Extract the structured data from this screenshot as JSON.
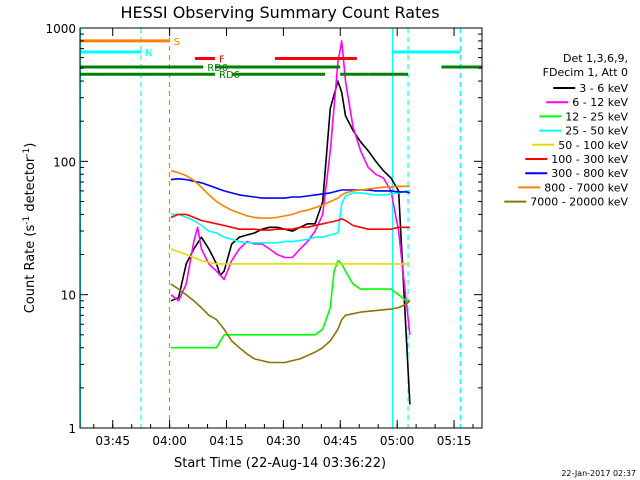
{
  "chart_data": {
    "type": "line",
    "title": "HESSI Observing Summary Count Rates",
    "xlabel": "Start Time (22-Aug-14 03:36:22)",
    "ylabel": "Count Rate (s^-1 detector^-1)",
    "y_scale": "log",
    "x_unit": "minutes since 03:36:22",
    "xlim": [
      0,
      106
    ],
    "ylim": [
      1,
      1000
    ],
    "x_ticks": [
      {
        "x": 8.63,
        "label": "03:45"
      },
      {
        "x": 23.63,
        "label": "04:00"
      },
      {
        "x": 38.63,
        "label": "04:15"
      },
      {
        "x": 53.63,
        "label": "04:30"
      },
      {
        "x": 68.63,
        "label": "04:45"
      },
      {
        "x": 83.63,
        "label": "05:00"
      },
      {
        "x": 98.63,
        "label": "05:15"
      }
    ],
    "y_ticks": [
      {
        "y": 1,
        "label": "1"
      },
      {
        "y": 10,
        "label": "10"
      },
      {
        "y": 100,
        "label": "100"
      },
      {
        "y": 1000,
        "label": "1000"
      }
    ],
    "legend": {
      "position": "right",
      "header": [
        "Det 1,3,6,9,",
        "FDecim 1, Att 0"
      ],
      "entries": [
        {
          "label": "3 - 6 keV",
          "color": "#000000"
        },
        {
          "label": "6 - 12 keV",
          "color": "#ff00ff"
        },
        {
          "label": "12 - 25 keV",
          "color": "#00ff00"
        },
        {
          "label": "25 - 50 keV",
          "color": "#00ffff"
        },
        {
          "label": "50 - 100 keV",
          "color": "#dddd00"
        },
        {
          "label": "100 - 300 keV",
          "color": "#ff0000"
        },
        {
          "label": "300 - 800 keV",
          "color": "#0000ff"
        },
        {
          "label": "800 - 7000 keV",
          "color": "#ff8000"
        },
        {
          "label": "7000 - 20000 keV",
          "color": "#8b7500"
        }
      ]
    },
    "flag_bars": [
      {
        "label": "S",
        "color": "#ff8000",
        "level": 800,
        "segments": [
          [
            0,
            23.6
          ]
        ]
      },
      {
        "label": "N",
        "color": "#00ffff",
        "level": 660,
        "segments": [
          [
            0,
            16.1
          ],
          [
            82.4,
            100.3
          ]
        ]
      },
      {
        "label": "F",
        "color": "#ff0000",
        "level": 590,
        "segments": [
          [
            30.3,
            35.6
          ],
          [
            51.4,
            73.0
          ]
        ]
      },
      {
        "label": "RD0",
        "color": "#008000",
        "level": 510,
        "segments": [
          [
            0,
            32.5
          ],
          [
            35.6,
            68.6
          ],
          [
            95.3,
            106
          ]
        ]
      },
      {
        "label": "RD6",
        "color": "#008000",
        "level": 450,
        "segments": [
          [
            0,
            35.6
          ],
          [
            40.0,
            64.6
          ],
          [
            68.6,
            76.1
          ],
          [
            76.1,
            86.5
          ]
        ]
      }
    ],
    "vertical_lines": [
      {
        "x": 0.1,
        "color": "#00ffff",
        "style": "solid"
      },
      {
        "x": 16.1,
        "color": "#00ffff",
        "style": "dashed"
      },
      {
        "x": 23.6,
        "color": "#ff8000",
        "style": "dashed"
      },
      {
        "x": 82.4,
        "color": "#00ffff",
        "style": "solid"
      },
      {
        "x": 86.5,
        "color": "#00ffff",
        "style": "dashed"
      },
      {
        "x": 100.3,
        "color": "#00ffff",
        "style": "dashed"
      }
    ],
    "series": [
      {
        "name": "3 - 6 keV",
        "color": "#000000",
        "x": [
          24,
          26,
          28,
          30,
          32,
          34,
          36,
          37,
          38,
          40,
          42,
          44,
          46,
          48,
          50,
          52,
          54,
          56,
          58,
          60,
          62,
          64,
          66,
          68,
          69,
          70,
          72,
          74,
          76,
          78,
          80,
          82,
          84,
          86,
          87
        ],
        "y": [
          9,
          9.5,
          17,
          22,
          27,
          22,
          17,
          14,
          15,
          24,
          27,
          28,
          29,
          31,
          32,
          32,
          31,
          30,
          32,
          34,
          34,
          50,
          250,
          400,
          330,
          220,
          170,
          140,
          120,
          100,
          85,
          75,
          60,
          5,
          1.5
        ]
      },
      {
        "name": "6 - 12 keV",
        "color": "#ff00ff",
        "x": [
          24,
          26,
          28,
          30,
          31,
          32,
          34,
          36,
          37,
          38,
          40,
          42,
          44,
          46,
          48,
          50,
          52,
          54,
          56,
          58,
          60,
          62,
          64,
          66,
          68,
          69,
          70,
          72,
          74,
          76,
          78,
          80,
          82,
          84,
          86,
          87
        ],
        "y": [
          10,
          9,
          12,
          25,
          32,
          22,
          17,
          15,
          14,
          13,
          18,
          22,
          25,
          24,
          24,
          22,
          20,
          19,
          19,
          22,
          25,
          30,
          40,
          120,
          550,
          800,
          400,
          180,
          120,
          90,
          80,
          75,
          60,
          30,
          9,
          5
        ]
      },
      {
        "name": "12 - 25 keV",
        "color": "#00ff00",
        "x": [
          24,
          27,
          30,
          33,
          36,
          38,
          40,
          43,
          46,
          50,
          54,
          58,
          62,
          64,
          66,
          67,
          68,
          69,
          70,
          72,
          74,
          76,
          78,
          80,
          82,
          84,
          86,
          87
        ],
        "y": [
          4,
          4,
          4,
          4,
          4,
          5,
          5,
          5,
          5,
          5,
          5,
          5,
          5,
          5.5,
          8,
          15,
          18,
          17,
          15,
          12,
          11,
          11,
          11,
          11,
          11,
          10,
          9,
          9
        ]
      },
      {
        "name": "25 - 50 keV",
        "color": "#00ffff",
        "x": [
          24,
          26,
          28,
          30,
          32,
          34,
          36,
          38,
          40,
          42,
          44,
          46,
          48,
          50,
          52,
          54,
          56,
          58,
          60,
          62,
          64,
          66,
          68,
          69,
          70,
          72,
          74,
          76,
          78,
          80,
          82,
          84,
          86,
          87
        ],
        "y": [
          40,
          40,
          38,
          36,
          33,
          30,
          29,
          27,
          26,
          25,
          24.5,
          24.5,
          24.5,
          24.5,
          24.5,
          25,
          25,
          25.5,
          26,
          27,
          27,
          28,
          29,
          48,
          55,
          58,
          58,
          57,
          56,
          56,
          57,
          58,
          60,
          60
        ]
      },
      {
        "name": "50 - 100 keV",
        "color": "#dddd00",
        "x": [
          24,
          26,
          28,
          30,
          32,
          34,
          36,
          38,
          40,
          42,
          44,
          46,
          48,
          50,
          52,
          54,
          56,
          58,
          60,
          62,
          64,
          66,
          68,
          69,
          70,
          72,
          74,
          76,
          78,
          80,
          82,
          84,
          86,
          87
        ],
        "y": [
          22,
          21,
          20,
          19,
          18,
          17.5,
          17,
          17,
          17,
          17,
          17,
          17,
          17,
          17,
          17,
          17,
          17,
          17,
          17,
          17,
          17,
          17,
          17,
          17,
          17,
          17,
          17,
          17,
          17,
          17,
          17,
          17,
          17,
          17
        ]
      },
      {
        "name": "100 - 300 keV",
        "color": "#ff0000",
        "x": [
          24,
          26,
          28,
          30,
          32,
          34,
          36,
          38,
          40,
          42,
          44,
          46,
          48,
          50,
          52,
          54,
          56,
          58,
          60,
          62,
          64,
          66,
          68,
          69,
          70,
          72,
          74,
          76,
          78,
          80,
          82,
          84,
          86,
          87
        ],
        "y": [
          38,
          40,
          40,
          38,
          36,
          35,
          34,
          33,
          32,
          31,
          31,
          31,
          30.5,
          30.5,
          31,
          31,
          31,
          32,
          32,
          33,
          34,
          35,
          36,
          37,
          36,
          33,
          32,
          31,
          31,
          31,
          31,
          32,
          32,
          32
        ]
      },
      {
        "name": "300 - 800 keV",
        "color": "#0000ff",
        "x": [
          24,
          26,
          28,
          30,
          32,
          34,
          36,
          38,
          40,
          42,
          44,
          46,
          48,
          50,
          52,
          54,
          56,
          58,
          60,
          62,
          64,
          66,
          68,
          69,
          70,
          72,
          74,
          76,
          78,
          80,
          82,
          84,
          86,
          87
        ],
        "y": [
          73,
          74,
          73,
          71,
          69,
          66,
          63,
          60,
          58,
          56,
          55,
          54,
          53,
          53,
          53,
          53,
          54,
          54,
          55,
          56,
          57,
          58,
          60,
          61,
          61,
          61,
          61,
          61,
          60,
          60,
          60,
          59,
          59,
          58
        ]
      },
      {
        "name": "800 - 7000 keV",
        "color": "#ff8000",
        "x": [
          24,
          26,
          28,
          30,
          32,
          34,
          36,
          38,
          40,
          42,
          44,
          46,
          48,
          50,
          52,
          54,
          56,
          58,
          60,
          62,
          64,
          66,
          68,
          69,
          70,
          72,
          74,
          76,
          78,
          80,
          82,
          84,
          86,
          87
        ],
        "y": [
          85,
          82,
          78,
          72,
          64,
          56,
          50,
          46,
          43,
          41,
          39,
          38,
          37.5,
          37.5,
          38,
          39,
          40,
          42,
          43,
          45,
          47,
          50,
          53,
          56,
          58,
          60,
          61,
          62,
          63,
          64,
          64,
          65,
          65,
          65
        ]
      },
      {
        "name": "7000 - 20000 keV",
        "color": "#8b7500",
        "x": [
          24,
          26,
          28,
          30,
          32,
          34,
          36,
          38,
          40,
          42,
          44,
          46,
          48,
          50,
          52,
          54,
          56,
          58,
          60,
          62,
          64,
          66,
          68,
          69,
          70,
          72,
          74,
          76,
          78,
          80,
          82,
          84,
          86,
          87
        ],
        "y": [
          12,
          11,
          10,
          9,
          8,
          7,
          6.5,
          5.5,
          4.5,
          4,
          3.6,
          3.3,
          3.2,
          3.1,
          3.1,
          3.1,
          3.2,
          3.3,
          3.5,
          3.7,
          4,
          4.5,
          5.5,
          6.5,
          7,
          7.2,
          7.4,
          7.5,
          7.6,
          7.7,
          7.8,
          8,
          8.5,
          9
        ]
      }
    ],
    "grid": false
  },
  "timestamp": "22-Jan-2017 02:37"
}
